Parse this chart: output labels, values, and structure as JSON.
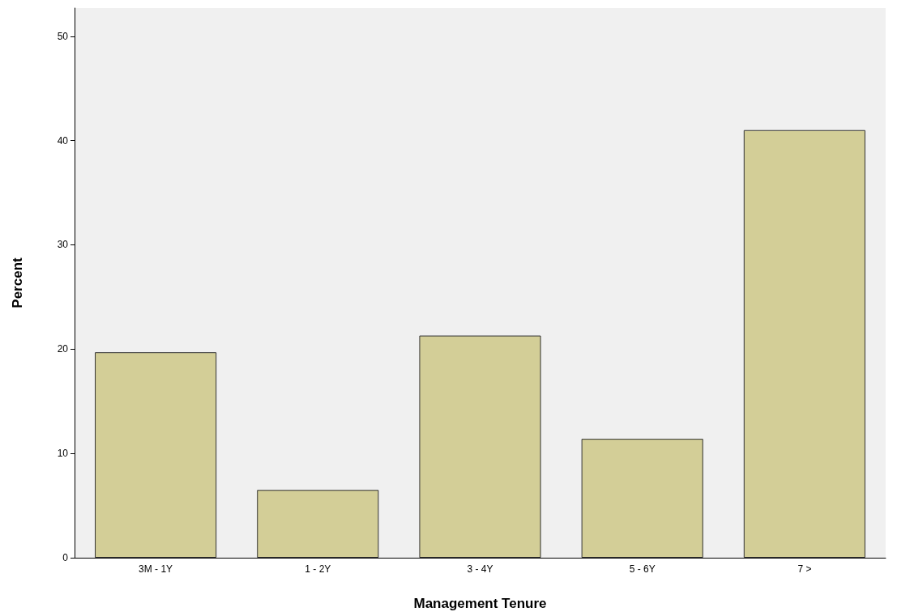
{
  "chart_data": {
    "type": "bar",
    "xlabel": "Management Tenure",
    "ylabel": "Percent",
    "categories": [
      "3M - 1Y",
      "1 - 2Y",
      "3 - 4Y",
      "5 - 6Y",
      "7 >"
    ],
    "values": [
      19.7,
      6.5,
      21.3,
      11.4,
      41.0
    ],
    "color": "#d3ce97",
    "ylim": [
      0,
      52.7
    ],
    "yticks": [
      0,
      10,
      20,
      30,
      40,
      50
    ],
    "grid": false
  }
}
